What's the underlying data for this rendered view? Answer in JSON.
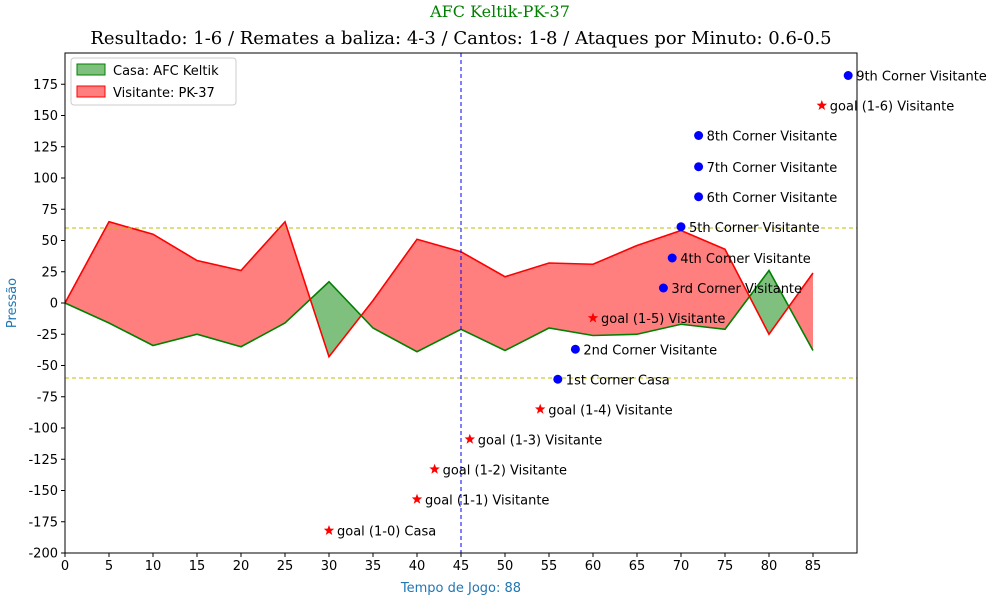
{
  "chart_data": {
    "type": "area",
    "suptitle": "AFC Keltik-PK-37",
    "title": "Resultado: 1-6 / Remates a baliza: 4-3 / Cantos: 1-8 / Ataques por Minuto: 0.6-0.5",
    "xlabel": "Tempo de Jogo: 88",
    "ylabel": "Pressão",
    "xlim": [
      0,
      90
    ],
    "ylim": [
      -200,
      200
    ],
    "xticks": [
      0,
      5,
      10,
      15,
      20,
      25,
      30,
      35,
      40,
      45,
      50,
      55,
      60,
      65,
      70,
      75,
      80,
      85
    ],
    "yticks": [
      -200,
      -175,
      -150,
      -125,
      -100,
      -75,
      -50,
      -25,
      0,
      25,
      50,
      75,
      100,
      125,
      150,
      175
    ],
    "legend_position": "upper-left",
    "colors": {
      "home": "#008000",
      "away": "#ff0000",
      "home_fill": "#7fc07f",
      "away_fill": "#ff7f7f",
      "threshold": "#bfbf00",
      "halftime": "#0000ff",
      "corner_marker": "#0000ff",
      "goal_marker": "#ff0000",
      "suptitle": "#008000",
      "axis_label": "#1f77b4"
    },
    "series": [
      {
        "name": "Casa: AFC Keltik",
        "key": "home",
        "x": [
          0,
          5,
          10,
          15,
          20,
          25,
          30,
          35,
          40,
          45,
          50,
          55,
          60,
          65,
          70,
          75,
          80,
          85
        ],
        "values": [
          0,
          -16,
          -34,
          -25,
          -35,
          -16,
          17,
          -20,
          -39,
          -21,
          -38,
          -20,
          -26,
          -25,
          -17,
          -21,
          26,
          -38
        ]
      },
      {
        "name": "Visitante: PK-37",
        "key": "away",
        "x": [
          0,
          5,
          10,
          15,
          20,
          25,
          30,
          35,
          40,
          45,
          50,
          55,
          60,
          65,
          70,
          75,
          80,
          85
        ],
        "values": [
          0,
          65,
          55,
          34,
          26,
          65,
          -43,
          2,
          51,
          41,
          21,
          32,
          31,
          46,
          58,
          43,
          -25,
          24
        ]
      }
    ],
    "threshold_lines": [
      60,
      -60
    ],
    "halftime_line": 45,
    "events": [
      {
        "type": "goal",
        "x": 30,
        "y": -182,
        "label": "goal (1-0) Casa"
      },
      {
        "type": "goal",
        "x": 40,
        "y": -157,
        "label": "goal (1-1) Visitante"
      },
      {
        "type": "goal",
        "x": 42,
        "y": -133,
        "label": "goal (1-2) Visitante"
      },
      {
        "type": "goal",
        "x": 46,
        "y": -109,
        "label": "goal (1-3) Visitante"
      },
      {
        "type": "goal",
        "x": 54,
        "y": -85,
        "label": "goal (1-4) Visitante"
      },
      {
        "type": "corner",
        "x": 56,
        "y": -61,
        "label": "1st Corner Casa"
      },
      {
        "type": "corner",
        "x": 58,
        "y": -37,
        "label": "2nd Corner Visitante"
      },
      {
        "type": "goal",
        "x": 60,
        "y": -12,
        "label": "goal (1-5) Visitante"
      },
      {
        "type": "corner",
        "x": 68,
        "y": 12,
        "label": "3rd Corner Visitante"
      },
      {
        "type": "corner",
        "x": 69,
        "y": 36,
        "label": "4th Corner Visitante"
      },
      {
        "type": "corner",
        "x": 70,
        "y": 61,
        "label": "5th Corner Visitante"
      },
      {
        "type": "corner",
        "x": 72,
        "y": 85,
        "label": "6th Corner Visitante"
      },
      {
        "type": "corner",
        "x": 72,
        "y": 109,
        "label": "7th Corner Visitante"
      },
      {
        "type": "corner",
        "x": 72,
        "y": 134,
        "label": "8th Corner Visitante"
      },
      {
        "type": "goal",
        "x": 86,
        "y": 158,
        "label": "goal (1-6) Visitante"
      },
      {
        "type": "corner",
        "x": 89,
        "y": 182,
        "label": "9th Corner Visitante"
      }
    ]
  }
}
